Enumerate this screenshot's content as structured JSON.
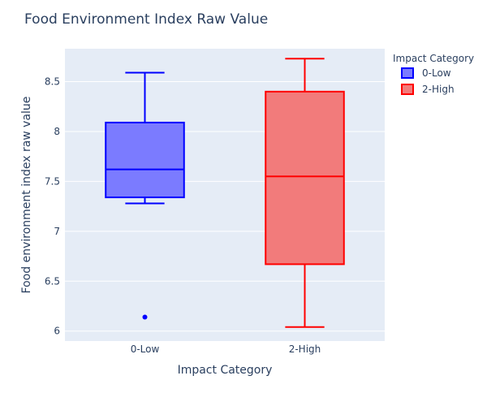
{
  "chart_data": {
    "type": "box",
    "title": "Food Environment Index Raw Value",
    "xlabel": "Impact Category",
    "ylabel": "Food environment index raw value",
    "ylim": [
      5.9,
      8.83
    ],
    "yticks": [
      "6",
      "6.5",
      "7",
      "7.5",
      "8",
      "8.5"
    ],
    "grid": true,
    "legend": {
      "title": "Impact Category",
      "placement": "top-right"
    },
    "categories": [
      "0-Low",
      "2-High"
    ],
    "series": [
      {
        "name": "0-Low",
        "category": "0-Low",
        "color": "#0000ff",
        "fill": "#7b7bff",
        "lower_whisker": 7.28,
        "q1": 7.34,
        "median": 7.62,
        "q3": 8.09,
        "upper_whisker": 8.59,
        "outliers": [
          6.14
        ]
      },
      {
        "name": "2-High",
        "category": "2-High",
        "color": "#ff0000",
        "fill": "#f27b7b",
        "lower_whisker": 6.04,
        "q1": 6.67,
        "median": 7.55,
        "q3": 8.4,
        "upper_whisker": 8.73,
        "outliers": []
      }
    ]
  },
  "colors": {
    "plot_bg": "#e5ecf6",
    "text": "#2a3f5f"
  }
}
